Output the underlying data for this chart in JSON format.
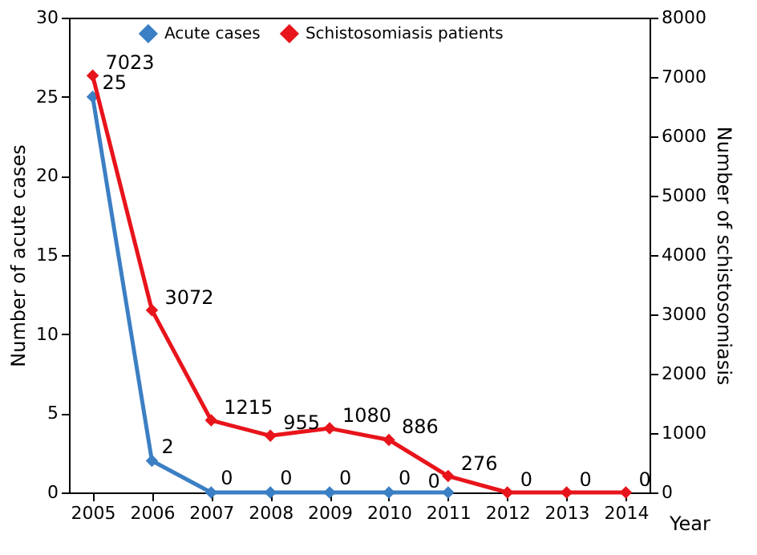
{
  "chart_data": {
    "type": "line",
    "categories": [
      "2005",
      "2006",
      "2007",
      "2008",
      "2009",
      "2010",
      "2011",
      "2012",
      "2013",
      "2014"
    ],
    "series": [
      {
        "name": "Acute cases",
        "color": "#3b7fc4",
        "values": [
          25,
          2,
          0,
          0,
          0,
          0,
          0,
          null,
          null,
          null
        ]
      },
      {
        "name": "Schistosomiasis patients",
        "color": "#e8141b",
        "axis": "y2",
        "values": [
          7023,
          3072,
          1215,
          955,
          1080,
          886,
          276,
          0,
          0,
          0
        ]
      }
    ],
    "xlabel": "Year",
    "ylabel": "Number of acute cases",
    "y2label": "Number of schistosomiasis",
    "ylim": [
      0,
      30
    ],
    "yticks": [
      0,
      5,
      10,
      15,
      20,
      25,
      30
    ],
    "y2lim": [
      0,
      8000
    ],
    "y2ticks": [
      0,
      1000,
      2000,
      3000,
      4000,
      5000,
      6000,
      7000,
      8000
    ],
    "marker": "diamond",
    "line_style": "solid",
    "data_labels": true,
    "legend": "top",
    "grid": false
  }
}
